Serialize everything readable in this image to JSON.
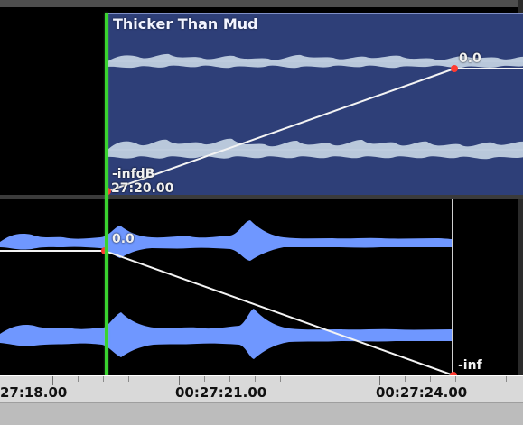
{
  "clip_top": {
    "title": "Thicker Than Mud",
    "start_level_label": "-infdB",
    "start_time_label": "27:20.00",
    "end_level_label": "0.0"
  },
  "clip_bottom": {
    "start_level_label": "0.0",
    "end_level_label": "-inf"
  },
  "ruler": {
    "labels": [
      "27:18.00",
      "00:27:21.00",
      "00:27:24.00"
    ]
  },
  "colors": {
    "top_clip_bg": "#2e3f78",
    "top_wave": "#b9c8db",
    "bottom_wave": "#6f97ff",
    "envelope_line": "#f4f4f4",
    "envelope_point": "#ff3a30",
    "playhead": "#3ad42f",
    "ruler_bg": "#d9d9d9"
  }
}
